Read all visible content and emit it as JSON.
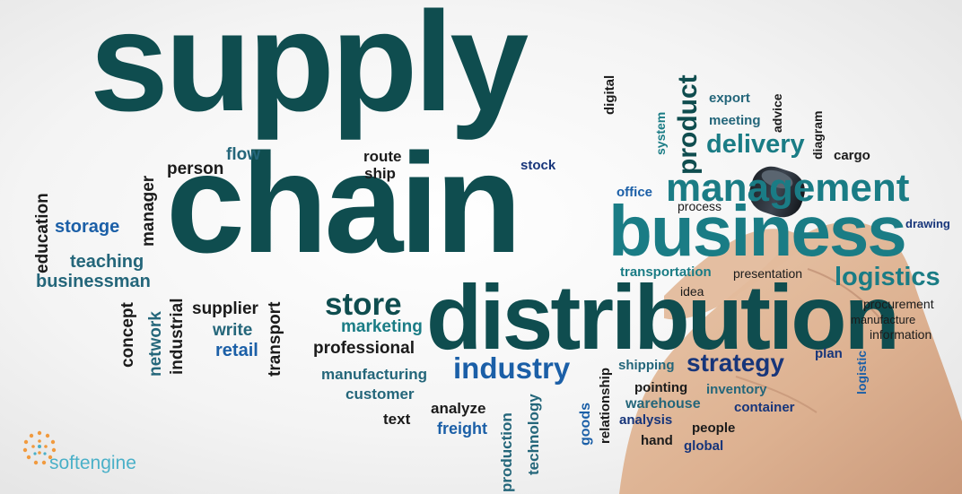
{
  "words": {
    "supply": "supply",
    "chain": "chain",
    "distribution": "distribution",
    "business": "business",
    "management": "management",
    "industry": "industry",
    "store": "store",
    "strategy": "strategy",
    "logistics": "logistics",
    "delivery": "delivery",
    "product": "product",
    "marketing": "marketing",
    "professional": "professional",
    "manufacturing": "manufacturing",
    "customer": "customer",
    "analyze": "analyze",
    "text": "text",
    "freight": "freight",
    "production": "production",
    "technology": "technology",
    "goods": "goods",
    "relationship": "relationship",
    "shipping": "shipping",
    "pointing": "pointing",
    "warehouse": "warehouse",
    "analysis": "analysis",
    "hand": "hand",
    "people": "people",
    "global": "global",
    "inventory": "inventory",
    "container": "container",
    "plan": "plan",
    "logistic": "logistic",
    "procurement": "procurement",
    "manufacture": "manufacture",
    "information": "information",
    "drawing": "drawing",
    "presentation": "presentation",
    "transportation": "transportation",
    "idea": "idea",
    "process": "process",
    "office": "office",
    "stock": "stock",
    "route": "route",
    "ship": "ship",
    "flow": "flow",
    "person": "person",
    "digital": "digital",
    "system": "system",
    "export": "export",
    "meeting": "meeting",
    "advice": "advice",
    "diagram": "diagram",
    "cargo": "cargo",
    "education": "education",
    "manager": "manager",
    "storage": "storage",
    "teaching": "teaching",
    "businessman": "businessman",
    "concept": "concept",
    "network": "network",
    "industrial": "industrial",
    "supplier": "supplier",
    "write": "write",
    "retail": "retail",
    "transport": "transport"
  },
  "logo": {
    "name": "softengine",
    "icon": "dotted-circle-logo-icon"
  },
  "colors": {
    "dark": "#0f4d4f",
    "teal": "#1a7c85",
    "blue": "#1b5fa7",
    "navy": "#17357a",
    "black": "#1b1b1b",
    "logo": "#4ab0c8",
    "logo_dots": "#f19a3e"
  }
}
